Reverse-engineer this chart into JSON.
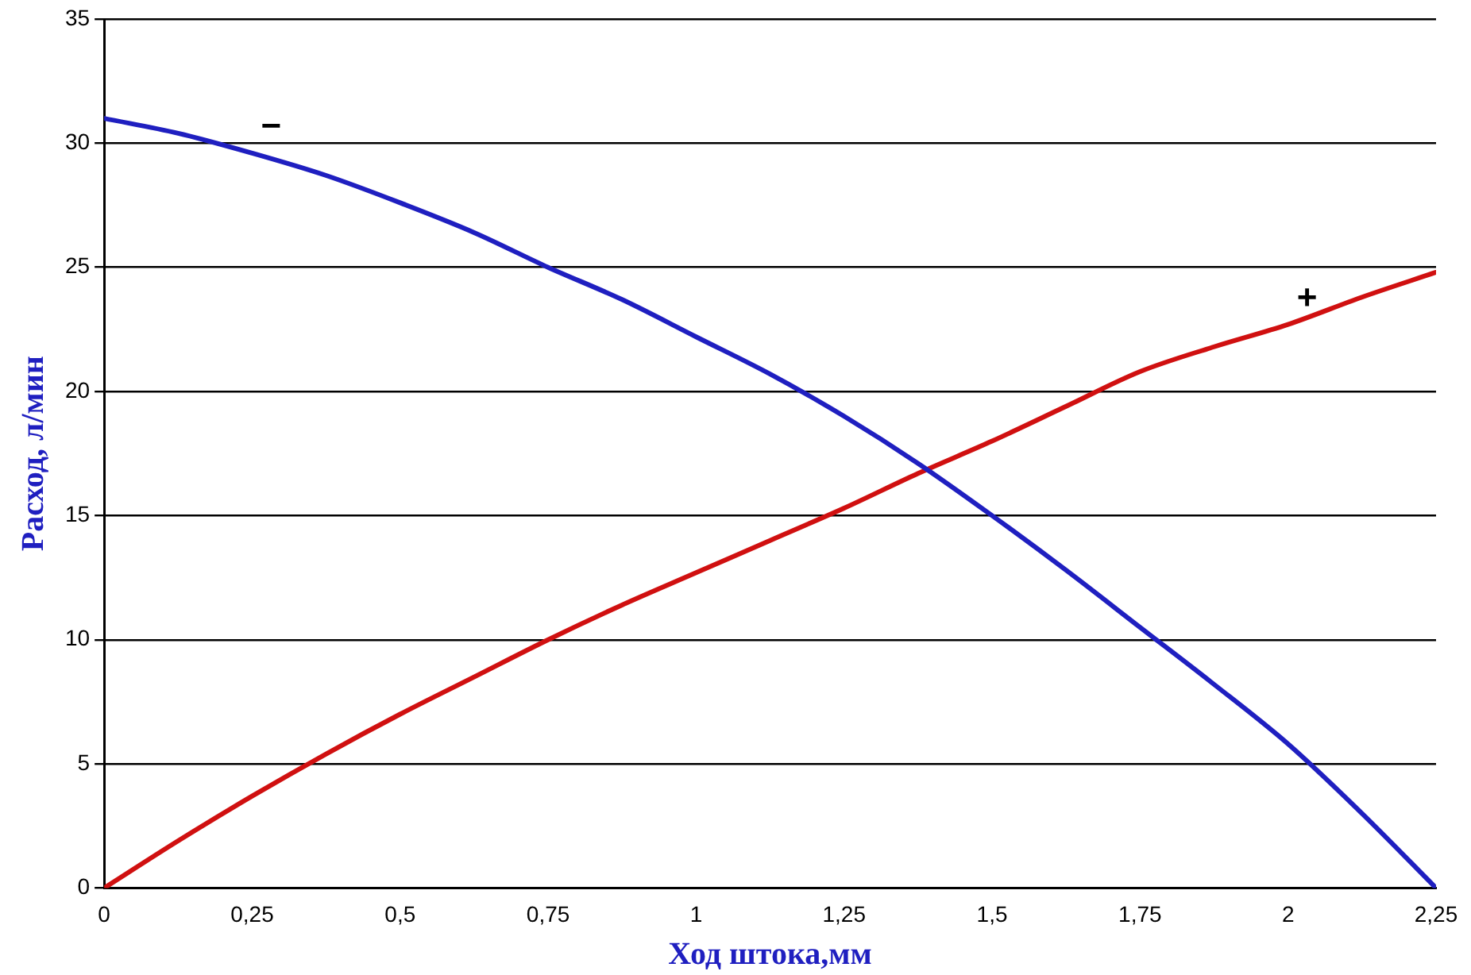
{
  "chart_data": {
    "type": "line",
    "xlabel": "Ход штока,мм",
    "ylabel": "Расход, л/мин",
    "x": [
      0,
      0.125,
      0.25,
      0.375,
      0.5,
      0.625,
      0.75,
      0.875,
      1,
      1.125,
      1.25,
      1.375,
      1.5,
      1.625,
      1.75,
      1.875,
      2,
      2.125,
      2.25
    ],
    "series": [
      {
        "name": "−",
        "color": "#1f1fc0",
        "values": [
          31,
          30.4,
          29.6,
          28.7,
          27.6,
          26.4,
          25,
          23.7,
          22.2,
          20.7,
          19,
          17.1,
          15,
          12.8,
          10.5,
          8.2,
          5.8,
          3,
          0
        ]
      },
      {
        "name": "+",
        "color": "#d01010",
        "values": [
          0,
          1.9,
          3.7,
          5.4,
          7,
          8.5,
          10,
          11.4,
          12.7,
          14,
          15.3,
          16.7,
          18,
          19.4,
          20.8,
          21.8,
          22.7,
          23.8,
          24.8
        ]
      }
    ],
    "xlim": [
      0,
      2.25
    ],
    "xticks": [
      0,
      {
        "value": 0.25,
        "label": "0,25"
      },
      {
        "value": 0.5,
        "label": "0,5"
      },
      {
        "value": 0.75,
        "label": "0,75"
      },
      1,
      {
        "value": 1.25,
        "label": "1,25"
      },
      {
        "value": 1.5,
        "label": "1,5"
      },
      {
        "value": 1.75,
        "label": "1,75"
      },
      2,
      {
        "value": 2.25,
        "label": "2,25"
      }
    ],
    "ylim": [
      0,
      35
    ],
    "yticks": [
      0,
      5,
      10,
      15,
      20,
      25,
      30,
      35
    ],
    "grid": "y",
    "legend": false,
    "marker": "none",
    "line_style": "solid"
  }
}
